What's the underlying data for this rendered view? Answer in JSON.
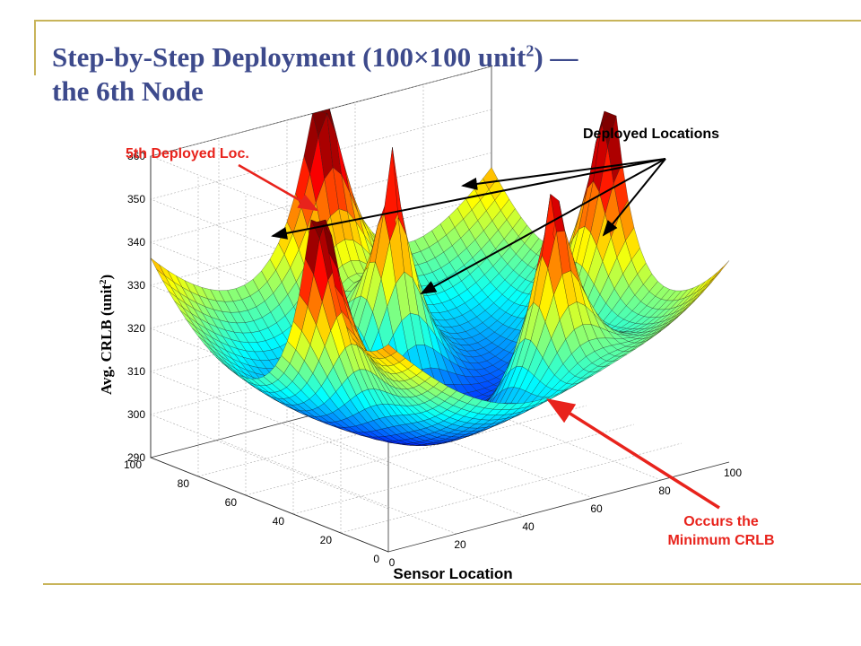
{
  "slide": {
    "title_line1_pre": "Step-by-Step Deployment (100×100 unit",
    "title_line1_sup": "2",
    "title_line1_post": ") —",
    "title_line2": "the 6th Node",
    "accent_color": "#c8b45a",
    "title_color": "#3d4a8c",
    "annotation_red": "#e8231c"
  },
  "chart_data": {
    "type": "surface3d",
    "title": "",
    "xlabel": "Sensor Location",
    "ylabel": "",
    "zlabel_pre": "Avg. CRLB (unit",
    "zlabel_sup": "2",
    "zlabel_post": ")",
    "x_ticks": [
      "0",
      "20",
      "40",
      "60",
      "80",
      "100"
    ],
    "y_ticks": [
      "0",
      "20",
      "40",
      "60",
      "80",
      "100"
    ],
    "z_ticks": [
      "290",
      "300",
      "310",
      "320",
      "330",
      "340",
      "350",
      "360"
    ],
    "xlim": [
      0,
      100
    ],
    "ylim": [
      0,
      100
    ],
    "zlim": [
      290,
      360
    ],
    "colormap": "jet",
    "grid": true,
    "surface": {
      "base": 292,
      "bowl_coeff": 0.0088,
      "bowl_center": [
        50,
        50
      ],
      "peak_height": 60,
      "peak_width": 9,
      "deployed_nodes": [
        [
          0,
          30
        ],
        [
          50,
          70
        ],
        [
          50,
          100
        ],
        [
          66,
          25
        ],
        [
          100,
          50
        ]
      ]
    },
    "annotations": {
      "fifth_deployed": "5th Deployed Loc.",
      "deployed_locations": "Deployed Locations",
      "minimum_line1": "Occurs the",
      "minimum_line2": "Minimum CRLB"
    }
  }
}
